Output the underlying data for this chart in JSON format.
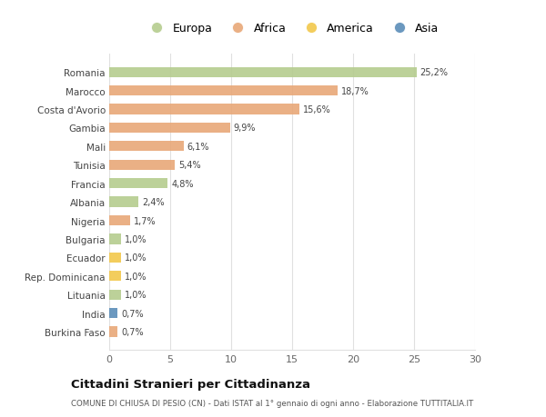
{
  "countries": [
    "Romania",
    "Marocco",
    "Costa d'Avorio",
    "Gambia",
    "Mali",
    "Tunisia",
    "Francia",
    "Albania",
    "Nigeria",
    "Bulgaria",
    "Ecuador",
    "Rep. Dominicana",
    "Lituania",
    "India",
    "Burkina Faso"
  ],
  "values": [
    25.2,
    18.7,
    15.6,
    9.9,
    6.1,
    5.4,
    4.8,
    2.4,
    1.7,
    1.0,
    1.0,
    1.0,
    1.0,
    0.7,
    0.7
  ],
  "labels": [
    "25,2%",
    "18,7%",
    "15,6%",
    "9,9%",
    "6,1%",
    "5,4%",
    "4,8%",
    "2,4%",
    "1,7%",
    "1,0%",
    "1,0%",
    "1,0%",
    "1,0%",
    "0,7%",
    "0,7%"
  ],
  "continents": [
    "Europa",
    "Africa",
    "Africa",
    "Africa",
    "Africa",
    "Africa",
    "Europa",
    "Europa",
    "Africa",
    "Europa",
    "America",
    "America",
    "Europa",
    "Asia",
    "Africa"
  ],
  "colors": {
    "Europa": "#b5cc8e",
    "Africa": "#e8a878",
    "America": "#f2c84b",
    "Asia": "#5b8db8"
  },
  "legend_order": [
    "Europa",
    "Africa",
    "America",
    "Asia"
  ],
  "title": "Cittadini Stranieri per Cittadinanza",
  "subtitle": "COMUNE DI CHIUSA DI PESIO (CN) - Dati ISTAT al 1° gennaio di ogni anno - Elaborazione TUTTITALIA.IT",
  "xlim": [
    0,
    30
  ],
  "xticks": [
    0,
    5,
    10,
    15,
    20,
    25,
    30
  ],
  "background_color": "#ffffff",
  "grid_color": "#e0e0e0"
}
